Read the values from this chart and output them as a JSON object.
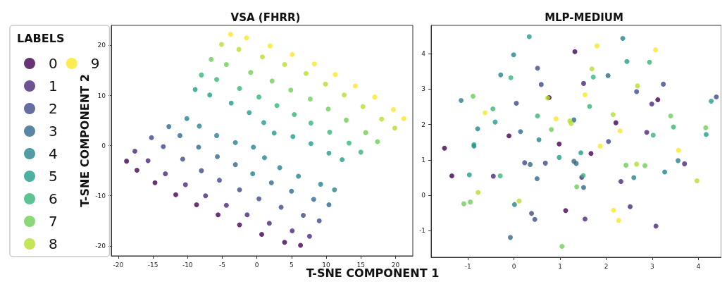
{
  "chart_data": [
    {
      "type": "scatter",
      "title": "VSA (FHRR)",
      "xlabel": "T-SNE COMPONENT 1",
      "ylabel": "T-SNE COMPONENT 2",
      "legend_title": "LABELS",
      "legend": "left",
      "marker": "circle",
      "xlim": [
        -21,
        22.5
      ],
      "ylim": [
        -22,
        24
      ],
      "xticks": [
        -20,
        -15,
        -10,
        -5,
        0,
        5,
        10,
        15,
        20
      ],
      "yticks": [
        -20,
        -10,
        0,
        10,
        20
      ],
      "series": [
        {
          "name": "0",
          "color": "#440154",
          "x": [
            -18.8,
            -17.3,
            -14.7,
            -11.7,
            -8.7,
            -5.6,
            -2.5,
            0.7,
            4.0,
            6.3
          ],
          "values": [
            -3.1,
            -4.9,
            -7.4,
            -9.8,
            -11.8,
            -13.8,
            -15.8,
            -17.7,
            -19.3,
            -19.9
          ]
        },
        {
          "name": "1",
          "color": "#482878",
          "x": [
            -17.6,
            -15.7,
            -13.2,
            -10.3,
            -7.4,
            -4.4,
            -1.4,
            1.8,
            5.1,
            7.6
          ],
          "values": [
            -1.1,
            -3.0,
            -5.6,
            -7.8,
            -10.0,
            -11.9,
            -13.8,
            -15.5,
            -17.0,
            -18.1
          ]
        },
        {
          "name": "2",
          "color": "#3e4989",
          "x": [
            -15.2,
            -13.5,
            -10.7,
            -8.0,
            -5.4,
            -2.5,
            0.3,
            3.5,
            6.7,
            9.0
          ],
          "values": [
            1.6,
            -0.2,
            -2.7,
            -5.0,
            -6.9,
            -8.8,
            -10.6,
            -12.3,
            -13.9,
            -15.0
          ]
        },
        {
          "name": "3",
          "color": "#31688e",
          "x": [
            -12.7,
            -11.1,
            -8.4,
            -5.7,
            -3.1,
            2.1,
            5.0,
            8.2,
            10.4
          ],
          "values": [
            3.8,
            2.0,
            -0.3,
            -2.2,
            -3.8,
            -7.4,
            -9.1,
            -10.7,
            -11.8
          ]
        },
        {
          "name": "4",
          "color": "#26828e",
          "x": [
            -10.1,
            -8.3,
            -5.8,
            -3.1,
            -0.5,
            -0.6,
            1.1,
            3.3,
            6.0,
            9.2,
            11.2
          ],
          "values": [
            5.4,
            3.9,
            2.0,
            0.6,
            -0.3,
            -5.6,
            -2.4,
            -4.4,
            -6.1,
            -7.7,
            -8.8
          ]
        },
        {
          "name": "5",
          "color": "#1f9e89",
          "x": [
            -8.9,
            -6.8,
            -3.7,
            -1.1,
            1.0,
            2.5,
            5.2,
            7.8,
            10.4,
            12.3
          ],
          "values": [
            11.2,
            10.1,
            8.5,
            6.6,
            4.6,
            2.5,
            1.8,
            0.4,
            -1.5,
            -2.8
          ]
        },
        {
          "name": "6",
          "color": "#35b779",
          "x": [
            -8.0,
            -5.8,
            -2.5,
            0.3,
            2.9,
            5.4,
            7.8,
            10.5,
            13.3,
            15.0
          ],
          "values": [
            14.1,
            13.2,
            11.4,
            9.7,
            8.0,
            6.2,
            4.5,
            2.7,
            0.5,
            -1.3
          ]
        },
        {
          "name": "7",
          "color": "#6ece58",
          "x": [
            -6.6,
            -4.4,
            -0.9,
            2.2,
            4.9,
            7.7,
            10.3,
            12.9,
            15.7,
            17.4
          ],
          "values": [
            17.2,
            16.2,
            14.6,
            12.9,
            11.1,
            9.3,
            7.3,
            5.1,
            2.6,
            0.8
          ]
        },
        {
          "name": "8",
          "color": "#b5de2b",
          "x": [
            -5.1,
            -2.6,
            0.8,
            4.0,
            7.1,
            9.9,
            12.6,
            15.3,
            18.0,
            19.9
          ],
          "values": [
            20.2,
            19.2,
            17.7,
            16.2,
            14.4,
            12.3,
            10.1,
            7.8,
            5.3,
            3.5
          ]
        },
        {
          "name": "9",
          "color": "#fde725",
          "x": [
            -3.8,
            -1.5,
            1.9,
            5.1,
            8.3,
            11.3,
            14.2,
            17.0,
            19.7,
            21.2
          ],
          "values": [
            22.2,
            21.5,
            19.9,
            18.2,
            16.3,
            14.2,
            11.9,
            9.7,
            7.2,
            5.4
          ]
        }
      ]
    },
    {
      "type": "scatter",
      "title": "MLP-MEDIUM",
      "marker": "circle",
      "xlim": [
        -1.8,
        4.5
      ],
      "ylim": [
        -1.75,
        4.8
      ],
      "xticks": [
        -1,
        0,
        1,
        2,
        3,
        4
      ],
      "yticks": [
        -1,
        0,
        1,
        2,
        3,
        4
      ],
      "series": [
        {
          "name": "0",
          "color": "#440154",
          "x": [
            0.76,
            -0.11,
            -1.51,
            0.98,
            -1.35,
            1.12,
            1.32,
            3.12,
            2.21,
            1.67
          ],
          "values": [
            2.76,
            1.68,
            1.33,
            1.45,
            0.55,
            -0.43,
            4.06,
            2.7,
            2.05,
            1.18
          ]
        },
        {
          "name": "1",
          "color": "#482878",
          "x": [
            -0.45,
            1.51,
            2.99,
            2.88,
            3.7,
            1.47,
            2.32,
            2.52,
            1.54,
            3.08
          ],
          "values": [
            0.54,
            3.16,
            2.58,
            1.78,
            0.89,
            0.51,
            0.39,
            -0.32,
            -0.67,
            -0.87
          ]
        },
        {
          "name": "2",
          "color": "#3e4989",
          "x": [
            0.51,
            0.59,
            0.05,
            0.23,
            0.68,
            0.38,
            0.45,
            3.24,
            2.66,
            4.39,
            2.05
          ],
          "values": [
            3.59,
            3.13,
            2.6,
            0.92,
            0.91,
            -0.51,
            -0.68,
            3.14,
            2.93,
            2.78,
            1.52
          ]
        },
        {
          "name": "3",
          "color": "#31688e",
          "x": [
            0.14,
            0.35,
            0.5,
            -0.08,
            2.04,
            1.3,
            1.3,
            1.35,
            1.51
          ],
          "values": [
            1.8,
            0.87,
            0.47,
            -1.19,
            3.38,
            2.13,
            0.96,
            0.9,
            0.22
          ]
        },
        {
          "name": "4",
          "color": "#26828e",
          "x": [
            -0.01,
            -0.29,
            -1.15,
            -0.79,
            0.54,
            -0.87,
            0.01,
            2.36,
            3.56,
            3.27,
            2.6
          ],
          "values": [
            3.97,
            3.4,
            2.68,
            1.88,
            1.57,
            1.39,
            -0.26,
            4.43,
            0.98,
            0.66,
            0.5
          ]
        },
        {
          "name": "5",
          "color": "#1f9e89",
          "x": [
            0.33,
            -0.41,
            -0.87,
            0.98,
            -0.97,
            2.45,
            4.28,
            4.17,
            1.45
          ],
          "values": [
            4.48,
            2.07,
            1.43,
            1.07,
            0.58,
            3.78,
            2.66,
            1.72,
            1.2
          ]
        },
        {
          "name": "6",
          "color": "#35b779",
          "x": [
            -0.07,
            -0.46,
            0.51,
            -0.3,
            2.94,
            1.72,
            1.64,
            3.46,
            3.02,
            1.5
          ],
          "values": [
            3.32,
            2.44,
            2.24,
            0.55,
            3.76,
            3.34,
            2.51,
            1.93,
            1.7,
            0.56
          ]
        },
        {
          "name": "7",
          "color": "#6ece58",
          "x": [
            -0.89,
            0.81,
            -1.09,
            -0.95,
            1.04,
            3.4,
            4.16,
            2.43,
            2.84,
            1.36
          ],
          "values": [
            2.8,
            1.86,
            -0.24,
            -0.19,
            -1.44,
            2.24,
            1.91,
            0.85,
            0.84,
            0.24
          ]
        },
        {
          "name": "8",
          "color": "#b5de2b",
          "x": [
            0.73,
            1.21,
            1.24,
            -0.78,
            0.11,
            1.69,
            2.68,
            2.15,
            2.66,
            3.97
          ],
          "values": [
            2.75,
            2.1,
            2.03,
            0.08,
            -0.16,
            3.57,
            3.09,
            2.28,
            0.88,
            0.41
          ]
        },
        {
          "name": "9",
          "color": "#fde725",
          "x": [
            -0.63,
            0.91,
            1.8,
            3.07,
            1.54,
            2.3,
            1.87,
            3.57,
            2.16,
            2.27
          ],
          "values": [
            2.33,
            2.16,
            4.22,
            4.11,
            2.84,
            1.82,
            1.39,
            1.27,
            -0.42,
            -0.71
          ]
        }
      ]
    }
  ]
}
